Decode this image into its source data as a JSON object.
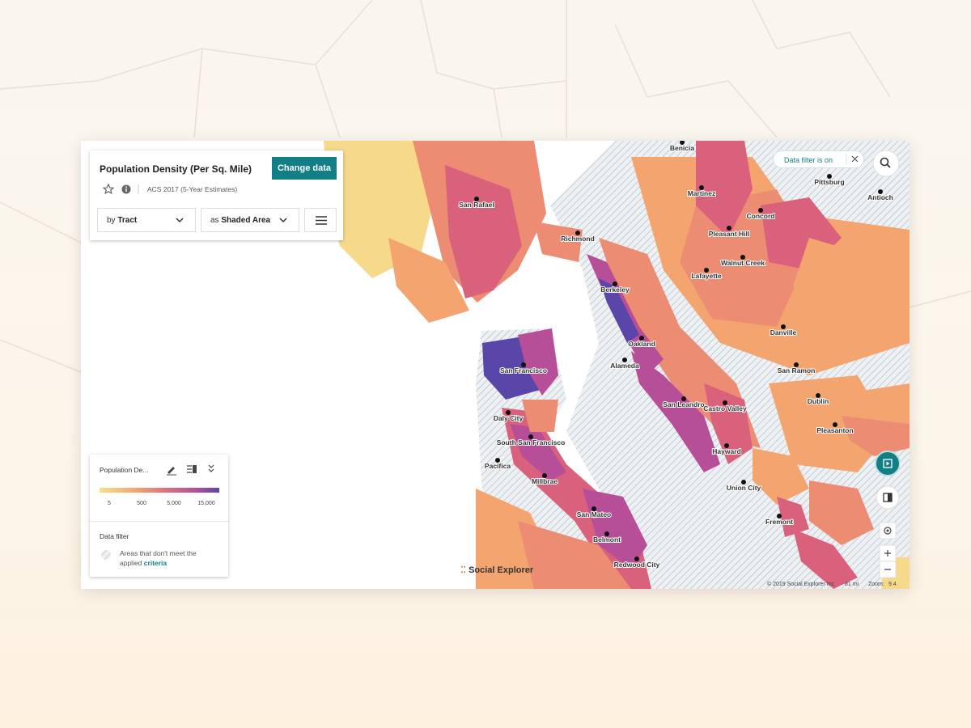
{
  "panel": {
    "title": "Population Density (Per Sq. Mile)",
    "button": "Change data",
    "source": "ACS 2017 (5-Year Estimates)",
    "geo_prefix": "by",
    "geo": "Tract",
    "viz_prefix": "as",
    "viz": "Shaded Area"
  },
  "filter_badge": "Data filter is on",
  "legend": {
    "title": "Population De...",
    "ticks": [
      "5",
      "500",
      "5,000",
      "15,000"
    ],
    "filter_title": "Data filter",
    "filter_text": "Areas that don't meet the applied",
    "filter_link": "criteria"
  },
  "map": {
    "places": [
      "Benicia",
      "Martinez",
      "Pittsburg",
      "Antioch",
      "San Rafael",
      "Concord",
      "Richmond",
      "Pleasant Hill",
      "Walnut Creek",
      "Lafayette",
      "Berkeley",
      "Danville",
      "Oakland",
      "San Francisco",
      "Alameda",
      "San Ramon",
      "Dublin",
      "San Leandro",
      "Castro Valley",
      "Daly City",
      "Pleasanton",
      "South San Francisco",
      "Hayward",
      "Pacifica",
      "Millbrae",
      "Union City",
      "San Mateo",
      "Fremont",
      "Belmont",
      "Redwood City"
    ]
  },
  "footer": {
    "logo": "Social Explorer",
    "copyright": "© 2019 Social Explorer Inc",
    "scale": "81 mi",
    "zoom_label": "Zoom:",
    "zoom": "9.4"
  }
}
